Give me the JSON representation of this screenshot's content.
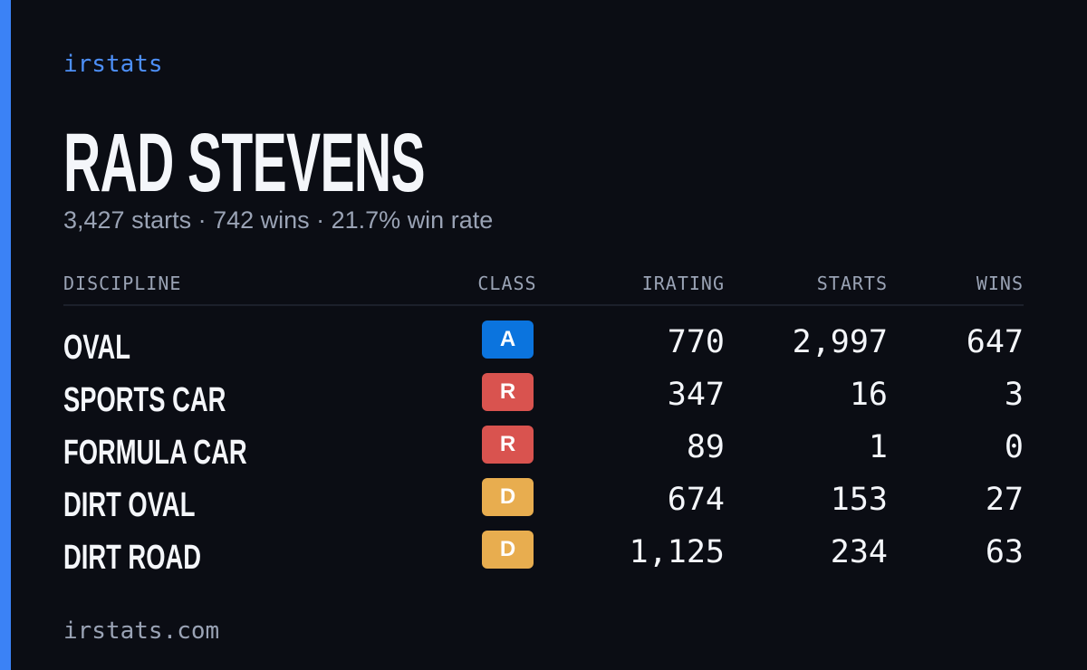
{
  "brand": "irstats",
  "driver": {
    "name": "RAD STEVENS",
    "summary": "3,427 starts · 742 wins · 21.7% win rate"
  },
  "table": {
    "headers": [
      "DISCIPLINE",
      "CLASS",
      "IRATING",
      "STARTS",
      "WINS"
    ],
    "rows": [
      {
        "discipline": "OVAL",
        "class": "A",
        "class_color": "#0b74de",
        "irating": "770",
        "starts": "2,997",
        "wins": "647"
      },
      {
        "discipline": "SPORTS CAR",
        "class": "R",
        "class_color": "#d9534f",
        "irating": "347",
        "starts": "16",
        "wins": "3"
      },
      {
        "discipline": "FORMULA CAR",
        "class": "R",
        "class_color": "#d9534f",
        "irating": "89",
        "starts": "1",
        "wins": "0"
      },
      {
        "discipline": "DIRT OVAL",
        "class": "D",
        "class_color": "#e8ad4f",
        "irating": "674",
        "starts": "153",
        "wins": "27"
      },
      {
        "discipline": "DIRT ROAD",
        "class": "D",
        "class_color": "#e8ad4f",
        "irating": "1,125",
        "starts": "234",
        "wins": "63"
      }
    ]
  },
  "footer": "irstats.com"
}
